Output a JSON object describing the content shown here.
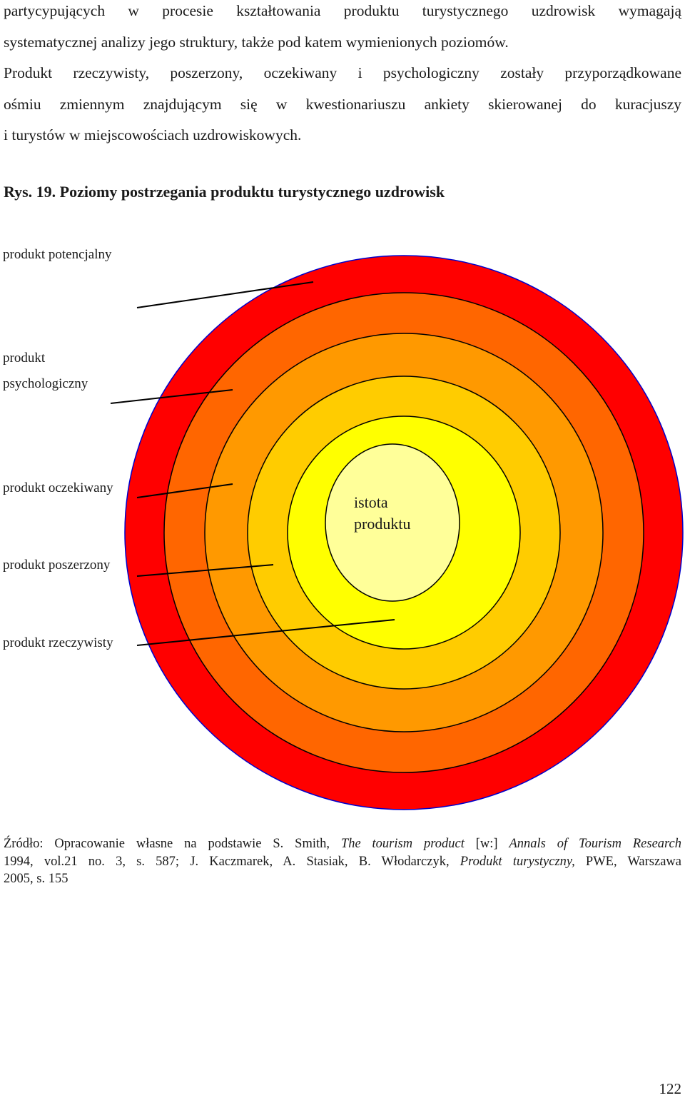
{
  "paragraph": {
    "lines": [
      "partycypujących w procesie kształtowania produktu turystycznego uzdrowisk wymagają",
      "systematycznej analizy jego struktury, także pod katem wymienionych poziomów.",
      "Produkt rzeczywisty, poszerzony, oczekiwany i psychologiczny zostały przyporządkowane",
      "ośmiu zmiennym znajdującym się w kwestionariuszu ankiety skierowanej do kuracjuszy",
      "i turystów w miejscowościach uzdrowiskowych."
    ]
  },
  "figure": {
    "title": "Rys. 19. Poziomy postrzegania produktu turystycznego uzdrowisk",
    "labels": {
      "potencjalny": "produkt potencjalny",
      "psychologiczny_1": "produkt",
      "psychologiczny_2": "psychologiczny",
      "oczekiwany": "produkt oczekiwany",
      "poszerzony": "produkt poszerzony",
      "rzeczywisty": "produkt rzeczywisty"
    },
    "core_label_1": "istota",
    "core_label_2": "produktu",
    "ring_colors": [
      "#ff0000",
      "#ff6600",
      "#ff9900",
      "#ffcc00",
      "#ffff00",
      "#ffff99"
    ]
  },
  "source": {
    "prefix": "Źródło: Opracowanie własne na podstawie  S. Smith, ",
    "title_1": "The tourism product",
    "mid_1": " [w:] ",
    "journal": "Annals of Tourism Research",
    "line2_a": "1994, vol.21 no. 3, s. 587; J. Kaczmarek, A. Stasiak, B. Włodarczyk, ",
    "title_2": "Produkt turystyczny,",
    "line2_b": " PWE, Warszawa",
    "line3": "2005, s. 155"
  },
  "page_number": "122"
}
